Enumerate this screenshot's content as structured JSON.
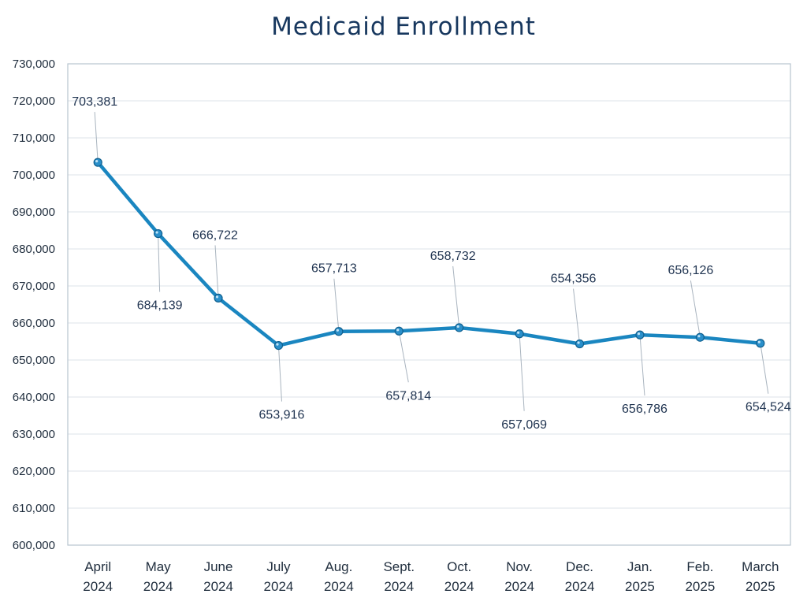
{
  "chart_data": {
    "type": "line",
    "title": "Medicaid Enrollment",
    "xlabel": "",
    "ylabel": "",
    "categories": [
      [
        "April",
        "2024"
      ],
      [
        "May",
        "2024"
      ],
      [
        "June",
        "2024"
      ],
      [
        "July",
        "2024"
      ],
      [
        "Aug.",
        "2024"
      ],
      [
        "Sept.",
        "2024"
      ],
      [
        "Oct.",
        "2024"
      ],
      [
        "Nov.",
        "2024"
      ],
      [
        "Dec.",
        "2024"
      ],
      [
        "Jan.",
        "2025"
      ],
      [
        "Feb.",
        "2025"
      ],
      [
        "March",
        "2025"
      ]
    ],
    "series": [
      {
        "values": [
          703381,
          684139,
          666722,
          653916,
          657713,
          657814,
          658732,
          657069,
          654356,
          656786,
          656126,
          654524
        ],
        "data_labels": [
          "703,381",
          "684,139",
          "666,722",
          "653,916",
          "657,713",
          "657,814",
          "658,732",
          "657,069",
          "654,356",
          "656,786",
          "656,126",
          "654,524"
        ],
        "label_positions": [
          "above",
          "below",
          "above",
          "below",
          "above",
          "below",
          "above",
          "below",
          "above",
          "below",
          "above",
          "below"
        ]
      }
    ],
    "ylim": [
      600000,
      730000
    ],
    "yticks": [
      600000,
      610000,
      620000,
      630000,
      640000,
      650000,
      660000,
      670000,
      680000,
      690000,
      700000,
      710000,
      720000,
      730000
    ],
    "ytick_labels": [
      "600,000",
      "610,000",
      "620,000",
      "630,000",
      "640,000",
      "650,000",
      "660,000",
      "670,000",
      "680,000",
      "690,000",
      "700,000",
      "710,000",
      "720,000",
      "730,000"
    ],
    "grid": "horizontal",
    "legend": "none",
    "colors": {
      "line": "#1a86c0",
      "marker": "#2a8fca",
      "gridline": "#dde3ea",
      "frame": "#b8c4cf",
      "leader": "#a9b4bf"
    }
  }
}
